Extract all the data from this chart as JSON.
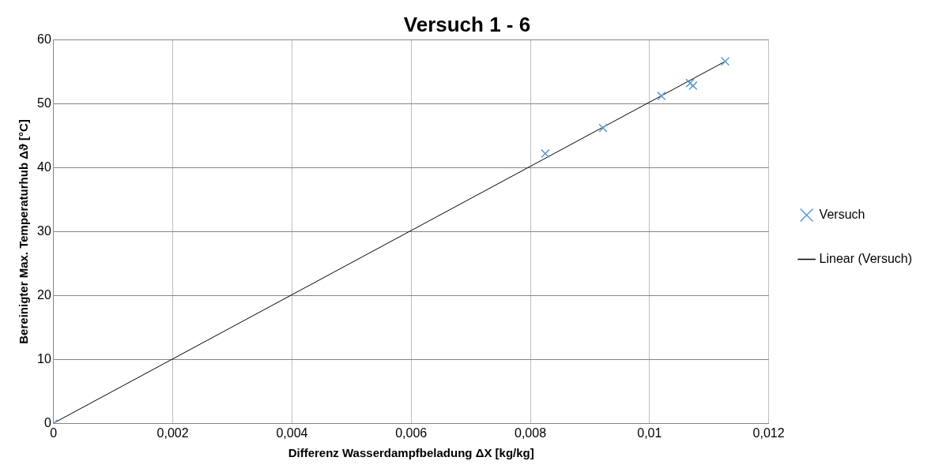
{
  "chart_data": {
    "type": "scatter",
    "title": "Versuch 1 - 6",
    "xlabel": "Differenz Wasserdampfbeladung ΔX [kg/kg]",
    "ylabel": "Bereinigter Max. Temperaturhub Δϑ [°C]",
    "series": [
      {
        "name": "Versuch",
        "type": "scatter",
        "color": "#5b9bd5",
        "marker": "cross",
        "x": [
          0,
          0.00825,
          0.00922,
          0.0102,
          0.01068,
          0.01073,
          0.01127
        ],
        "values": [
          0,
          42.2,
          46.2,
          51.2,
          53.2,
          52.8,
          56.6
        ]
      },
      {
        "name": "Linear (Versuch)",
        "type": "line",
        "color": "#000000",
        "marker": "none",
        "x": [
          0,
          0.01127
        ],
        "values": [
          0.1,
          56.6
        ]
      }
    ],
    "xlim": [
      0,
      0.012
    ],
    "xticks": [
      0,
      {
        "value": 0.002,
        "label": "0,002"
      },
      {
        "value": 0.004,
        "label": "0,004"
      },
      {
        "value": 0.006,
        "label": "0,006"
      },
      {
        "value": 0.008,
        "label": "0,008"
      },
      {
        "value": 0.01,
        "label": "0,01"
      },
      {
        "value": 0.012,
        "label": "0,012"
      }
    ],
    "ylim": [
      0,
      60
    ],
    "yticks": [
      0,
      10,
      20,
      30,
      40,
      50,
      60
    ],
    "grid": true,
    "legend": "right"
  }
}
